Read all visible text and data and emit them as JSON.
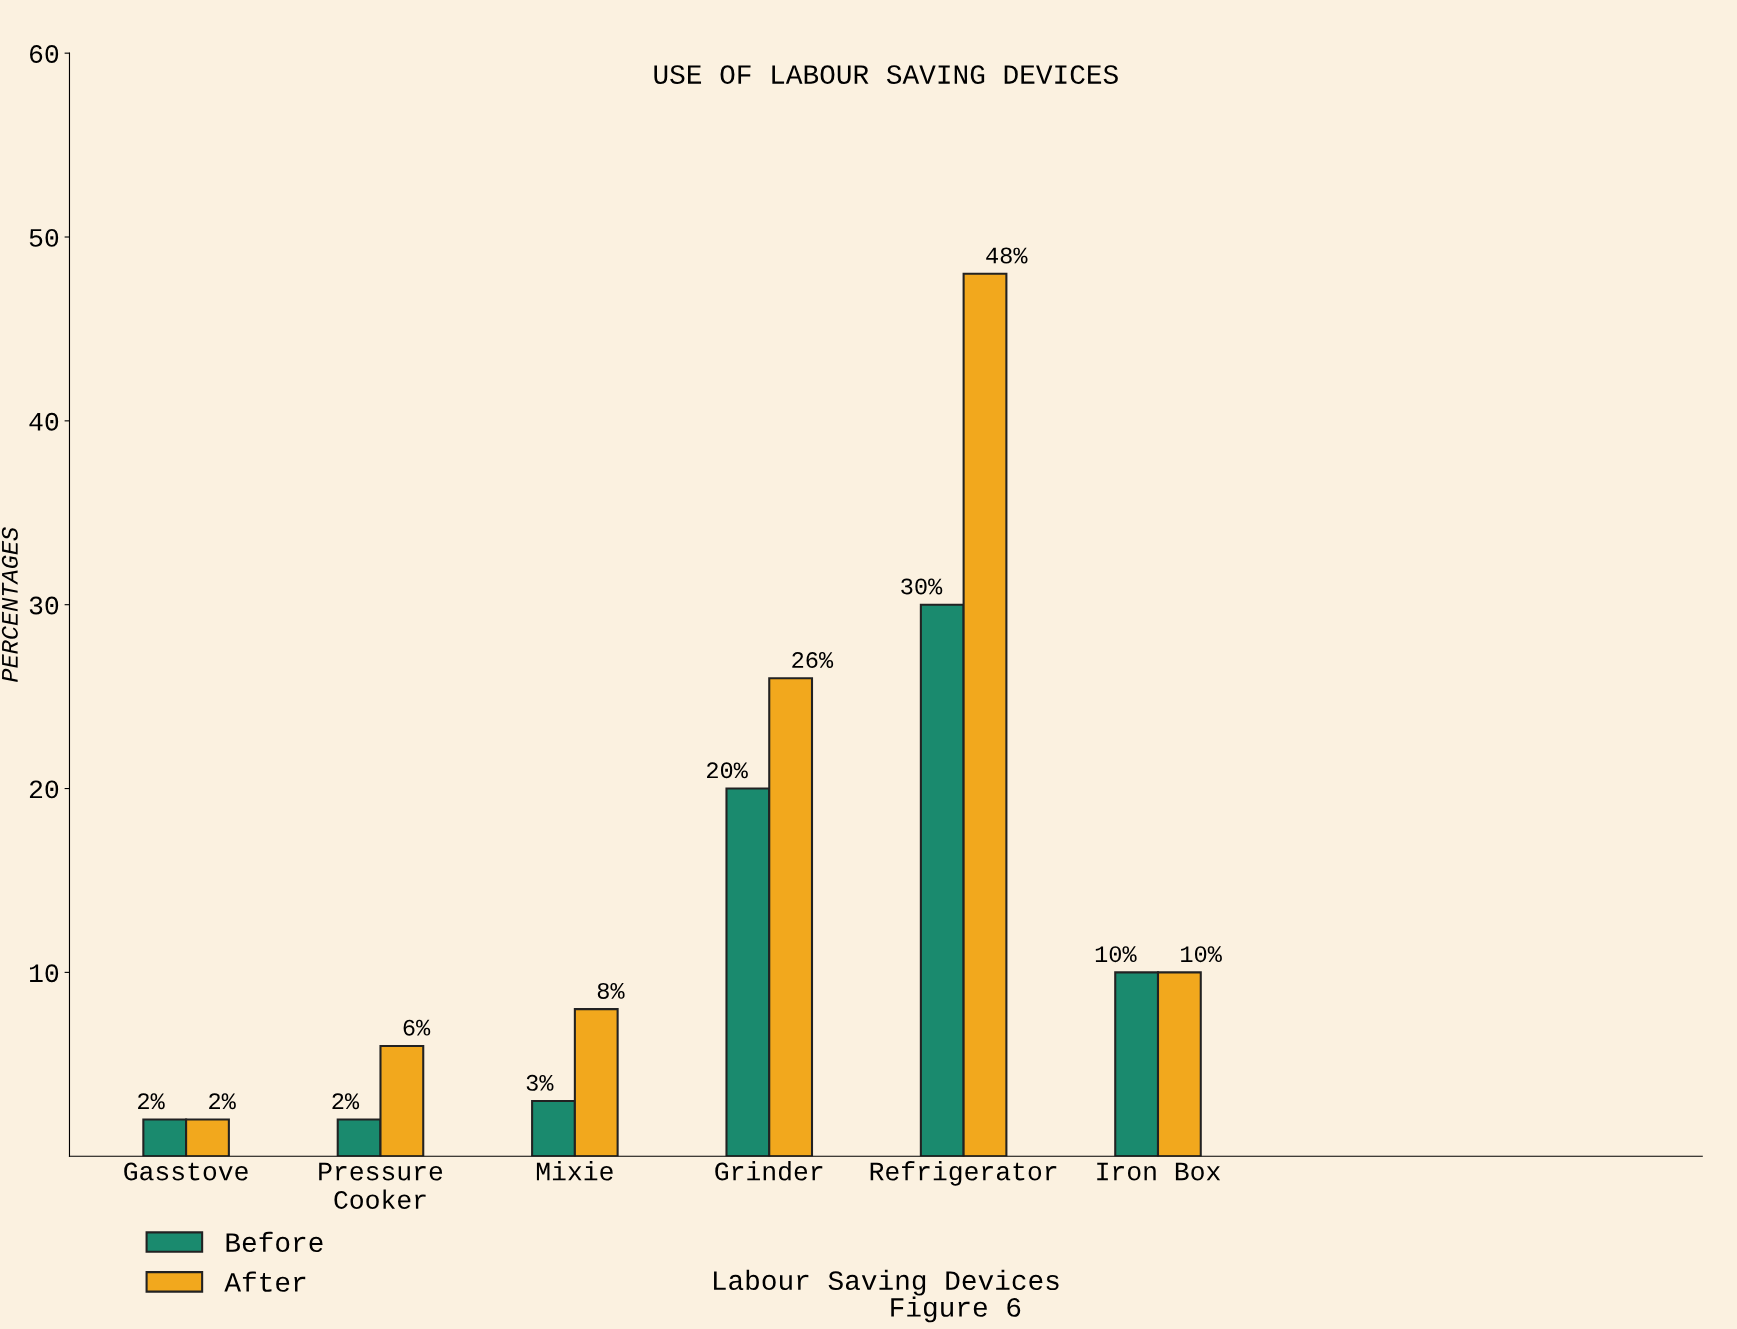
{
  "chart_data": {
    "type": "bar",
    "title": "USE OF LABOUR SAVING DEVICES",
    "xlabel": "Labour Saving Devices",
    "ylabel": "PERCENTAGES",
    "categories": [
      "Gasstove",
      "Pressure\nCooker",
      "Mixie",
      "Grinder",
      "Refrigerator",
      "Iron Box"
    ],
    "series": [
      {
        "name": "Before",
        "color": "#1a8a6e",
        "values": [
          2,
          2,
          3,
          20,
          30,
          10
        ],
        "value_labels": [
          "2%",
          "2%",
          "3%",
          "20%",
          "30%",
          "10%"
        ]
      },
      {
        "name": "After",
        "color": "#f2a81d",
        "values": [
          2,
          6,
          8,
          26,
          48,
          10
        ],
        "value_labels": [
          "2%",
          "6%",
          "8%",
          "26%",
          "48%",
          "10%"
        ]
      }
    ],
    "ylim": [
      0,
      60
    ],
    "yticks": [
      10,
      20,
      30,
      40,
      50,
      60
    ],
    "grid": false,
    "legend": "bottom left",
    "annotations": [
      "Figure 6"
    ]
  }
}
